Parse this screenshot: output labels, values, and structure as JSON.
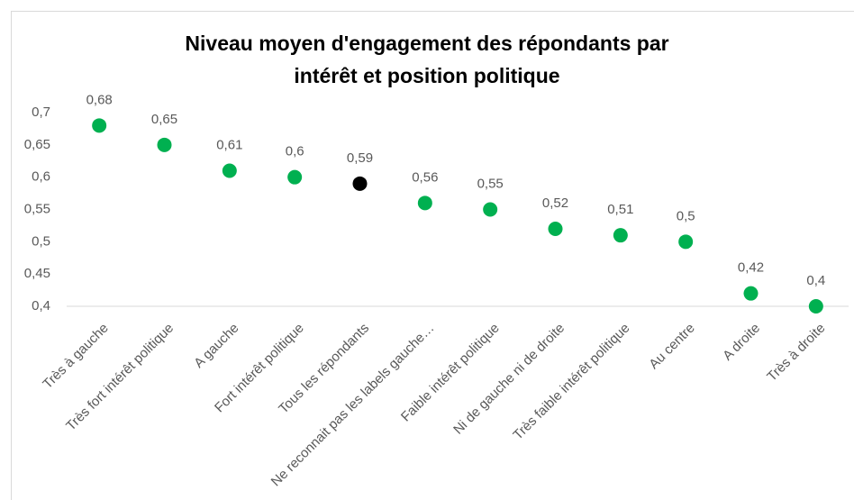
{
  "chart_data": {
    "type": "scatter",
    "title": "Niveau moyen d'engagement des répondants par intérêt et position politique",
    "categories": [
      "Très à gauche",
      "Très fort intérêt politique",
      "A gauche",
      "Fort intérêt politique",
      "Tous les répondants",
      "Ne reconnait pas les labels gauche…",
      "Faible intérêt politique",
      "Ni de gauche ni de droite",
      "Très faible intérêt politique",
      "Au centre",
      "A droite",
      "Très à droite"
    ],
    "values": [
      0.68,
      0.65,
      0.61,
      0.6,
      0.59,
      0.56,
      0.55,
      0.52,
      0.51,
      0.5,
      0.42,
      0.4
    ],
    "value_labels": [
      "0,68",
      "0,65",
      "0,61",
      "0,6",
      "0,59",
      "0,56",
      "0,55",
      "0,52",
      "0,51",
      "0,5",
      "0,42",
      "0,4"
    ],
    "colors": [
      "#00b050",
      "#00b050",
      "#00b050",
      "#00b050",
      "#000000",
      "#00b050",
      "#00b050",
      "#00b050",
      "#00b050",
      "#00b050",
      "#00b050",
      "#00b050"
    ],
    "ylim": [
      0.4,
      0.7
    ],
    "yticks": [
      {
        "value": 0.4,
        "label": "0,4"
      },
      {
        "value": 0.45,
        "label": "0,45"
      },
      {
        "value": 0.5,
        "label": "0,5"
      },
      {
        "value": 0.55,
        "label": "0,55"
      },
      {
        "value": 0.6,
        "label": "0,6"
      },
      {
        "value": 0.65,
        "label": "0,65"
      },
      {
        "value": 0.7,
        "label": "0,7"
      }
    ],
    "grid": false
  }
}
